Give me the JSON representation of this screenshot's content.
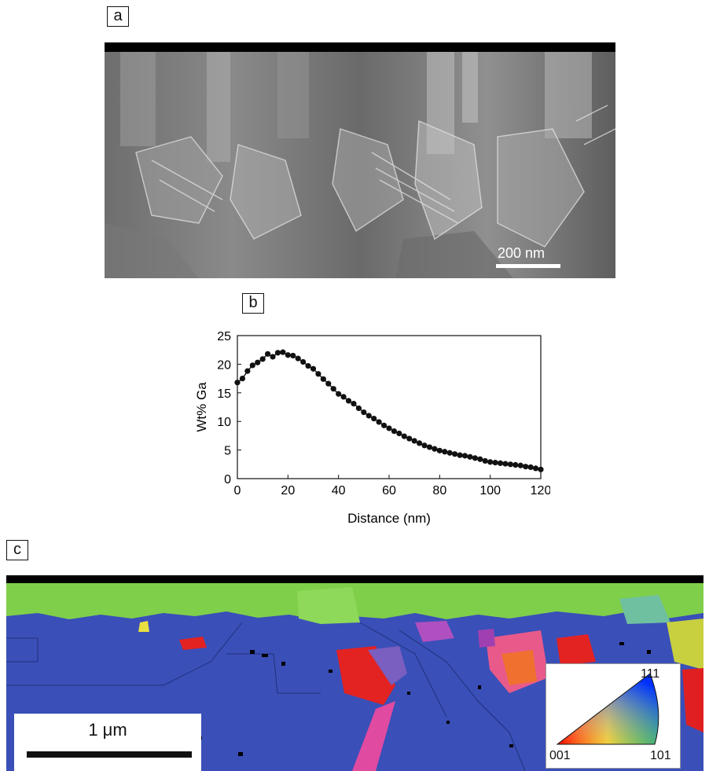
{
  "panels": {
    "a": "a",
    "b": "b",
    "c": "c"
  },
  "sem": {
    "scale_bar_label": "200 nm"
  },
  "chart_data": {
    "type": "line",
    "xlabel": "Distance (nm)",
    "ylabel": "Wt% Ga",
    "xlim": [
      0,
      120
    ],
    "ylim": [
      0,
      25
    ],
    "xticks": [
      0,
      20,
      40,
      60,
      80,
      100,
      120
    ],
    "yticks": [
      0,
      5,
      10,
      15,
      20,
      25
    ],
    "grid": false,
    "series": [
      {
        "x": [
          0,
          2,
          4,
          6,
          8,
          10,
          12,
          14,
          16,
          18,
          20,
          22,
          24,
          26,
          28,
          30,
          32,
          34,
          36,
          38,
          40,
          42,
          44,
          46,
          48,
          50,
          52,
          54,
          56,
          58,
          60,
          62,
          64,
          66,
          68,
          70,
          72,
          74,
          76,
          78,
          80,
          82,
          84,
          86,
          88,
          90,
          92,
          94,
          96,
          98,
          100,
          102,
          104,
          106,
          108,
          110,
          112,
          114,
          116,
          118,
          120
        ],
        "y": [
          16.8,
          17.5,
          18.8,
          19.8,
          20.3,
          20.9,
          21.8,
          21.3,
          22.0,
          22.1,
          21.6,
          21.5,
          21.0,
          20.4,
          19.7,
          19.2,
          18.3,
          17.4,
          16.6,
          15.7,
          14.8,
          14.3,
          13.6,
          13.1,
          12.3,
          11.6,
          11.0,
          10.5,
          9.9,
          9.3,
          8.8,
          8.3,
          7.9,
          7.4,
          7.0,
          6.6,
          6.2,
          5.8,
          5.5,
          5.2,
          4.9,
          4.7,
          4.5,
          4.3,
          4.1,
          4.0,
          3.8,
          3.6,
          3.4,
          3.1,
          2.9,
          2.8,
          2.7,
          2.6,
          2.5,
          2.4,
          2.3,
          2.1,
          2.0,
          1.8,
          1.6
        ]
      }
    ]
  },
  "ebsd": {
    "scale_bar_label": "1 μm",
    "legend": {
      "top": "111",
      "left": "001",
      "right": "101"
    }
  },
  "colors": {
    "blue_grain": "#3a4fb8",
    "green_grain": "#7fcf4a",
    "red_grain": "#e32222",
    "pink_grain": "#e04aa0"
  }
}
